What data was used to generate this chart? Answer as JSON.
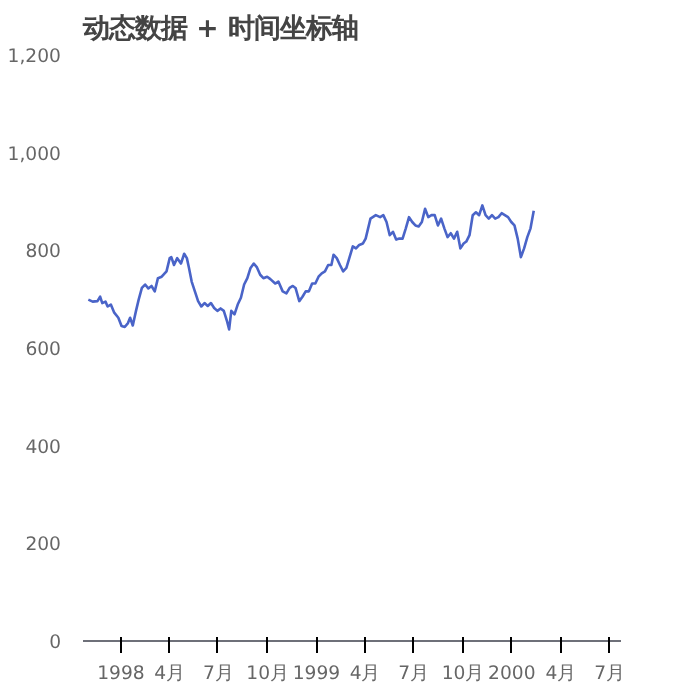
{
  "chart_data": {
    "type": "line",
    "title": "动态数据 + 时间坐标轴",
    "x": [
      "1997-11-01",
      "1997-11-09",
      "1997-11-18",
      "1997-11-23",
      "1997-11-27",
      "1997-12-03",
      "1997-12-07",
      "1997-12-13",
      "1997-12-19",
      "1997-12-27",
      "1998-01-02",
      "1998-01-08",
      "1998-01-14",
      "1998-01-18",
      "1998-01-23",
      "1998-01-29",
      "1998-02-03",
      "1998-02-09",
      "1998-02-15",
      "1998-02-21",
      "1998-02-27",
      "1998-03-05",
      "1998-03-11",
      "1998-03-18",
      "1998-03-27",
      "1998-04-02",
      "1998-04-05",
      "1998-04-10",
      "1998-04-16",
      "1998-04-23",
      "1998-04-29",
      "1998-05-04",
      "1998-05-08",
      "1998-05-13",
      "1998-05-19",
      "1998-05-25",
      "1998-05-31",
      "1998-06-06",
      "1998-06-12",
      "1998-06-18",
      "1998-06-24",
      "1998-06-30",
      "1998-07-06",
      "1998-07-12",
      "1998-07-18",
      "1998-07-22",
      "1998-07-26",
      "1998-08-01",
      "1998-08-07",
      "1998-08-13",
      "1998-08-19",
      "1998-08-25",
      "1998-08-31",
      "1998-09-06",
      "1998-09-12",
      "1998-09-18",
      "1998-09-24",
      "1998-10-01",
      "1998-10-07",
      "1998-10-16",
      "1998-10-22",
      "1998-10-30",
      "1998-11-06",
      "1998-11-12",
      "1998-11-18",
      "1998-11-23",
      "1998-11-30",
      "1998-12-06",
      "1998-12-12",
      "1998-12-18",
      "1998-12-24",
      "1998-12-30",
      "1999-01-05",
      "1999-01-11",
      "1999-01-17",
      "1999-01-23",
      "1999-01-29",
      "1999-02-02",
      "1999-02-08",
      "1999-02-14",
      "1999-02-20",
      "1999-02-26",
      "1999-03-04",
      "1999-03-10",
      "1999-03-16",
      "1999-03-22",
      "1999-03-29",
      "1999-04-03",
      "1999-04-12",
      "1999-04-22",
      "1999-04-30",
      "1999-05-06",
      "1999-05-12",
      "1999-05-18",
      "1999-05-24",
      "1999-05-30",
      "1999-06-05",
      "1999-06-11",
      "1999-06-17",
      "1999-06-23",
      "1999-06-29",
      "1999-07-05",
      "1999-07-11",
      "1999-07-17",
      "1999-07-23",
      "1999-07-29",
      "1999-08-04",
      "1999-08-10",
      "1999-08-16",
      "1999-08-22",
      "1999-08-28",
      "1999-09-03",
      "1999-09-09",
      "1999-09-15",
      "1999-09-21",
      "1999-09-27",
      "1999-10-03",
      "1999-10-08",
      "1999-10-14",
      "1999-10-20",
      "1999-10-26",
      "1999-11-01",
      "1999-11-07",
      "1999-11-13",
      "1999-11-19",
      "1999-11-25",
      "1999-12-01",
      "1999-12-07",
      "1999-12-13",
      "1999-12-19",
      "1999-12-25",
      "1999-12-31",
      "2000-01-06",
      "2000-01-12",
      "2000-01-18",
      "2000-01-24",
      "2000-01-30",
      "2000-02-05",
      "2000-02-11"
    ],
    "series": [
      {
        "color": "#4a64c8",
        "values": [
          699,
          695,
          696,
          705,
          692,
          695,
          685,
          689,
          673,
          662,
          645,
          643,
          651,
          662,
          646,
          676,
          699,
          723,
          730,
          722,
          727,
          716,
          743,
          746,
          757,
          784,
          786,
          770,
          784,
          773,
          793,
          784,
          764,
          736,
          716,
          696,
          685,
          692,
          686,
          692,
          682,
          676,
          681,
          676,
          655,
          638,
          676,
          669,
          689,
          703,
          730,
          743,
          764,
          773,
          765,
          750,
          743,
          746,
          741,
          732,
          736,
          716,
          712,
          723,
          727,
          723,
          696,
          705,
          716,
          716,
          732,
          732,
          746,
          753,
          757,
          770,
          770,
          791,
          784,
          770,
          757,
          764,
          786,
          808,
          804,
          811,
          814,
          824,
          865,
          872,
          868,
          872,
          858,
          831,
          838,
          822,
          824,
          824,
          845,
          868,
          858,
          851,
          849,
          858,
          885,
          868,
          872,
          872,
          851,
          865,
          845,
          827,
          835,
          824,
          838,
          804,
          814,
          818,
          831,
          872,
          878,
          872,
          892,
          872,
          865,
          872,
          865,
          868,
          876,
          872,
          868,
          858,
          851,
          824,
          786,
          804,
          827,
          845,
          881
        ]
      }
    ],
    "xlim": [
      "1997-10-22",
      "2000-07-23"
    ],
    "xticks": [
      {
        "value": "1998-01-01",
        "label": "1998"
      },
      {
        "value": "1998-04-01",
        "label": "4月"
      },
      {
        "value": "1998-07-01",
        "label": "7月"
      },
      {
        "value": "1998-10-01",
        "label": "10月"
      },
      {
        "value": "1999-01-01",
        "label": "1999"
      },
      {
        "value": "1999-04-01",
        "label": "4月"
      },
      {
        "value": "1999-07-01",
        "label": "7月"
      },
      {
        "value": "1999-10-01",
        "label": "10月"
      },
      {
        "value": "2000-01-01",
        "label": "2000"
      },
      {
        "value": "2000-04-01",
        "label": "4月"
      },
      {
        "value": "2000-07-01",
        "label": "7月"
      }
    ],
    "ylim": [
      0,
      1200
    ],
    "yticks": [
      0,
      200,
      400,
      600,
      800,
      {
        "value": 1000,
        "label": "1,000"
      },
      {
        "value": 1200,
        "label": "1,200"
      }
    ],
    "grid": false,
    "marker": "none",
    "line_style": "solid"
  }
}
